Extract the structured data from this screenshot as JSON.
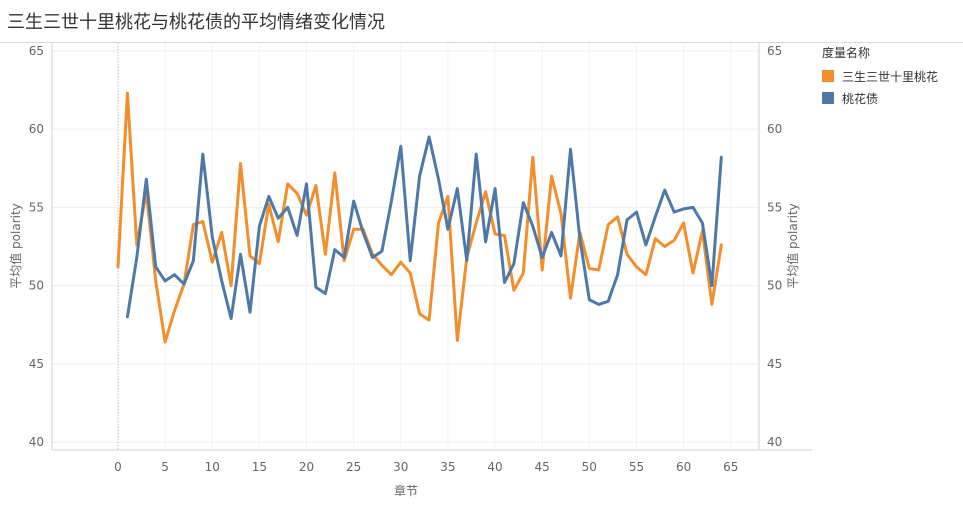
{
  "title": "三生三世十里桃花与桃花债的平均情绪变化情况",
  "legend": {
    "title": "度量名称",
    "items": [
      {
        "label": "三生三世十里桃花",
        "color": "#f28e2b"
      },
      {
        "label": "桃花债",
        "color": "#4e79a7"
      }
    ]
  },
  "chart_data": {
    "type": "line",
    "xlabel": "章节",
    "ylabel_left": "平均值 polarity",
    "ylabel_right": "平均值 polarity",
    "xlim": [
      -7,
      68
    ],
    "ylim": [
      39.5,
      65.5
    ],
    "xticks": [
      0,
      5,
      10,
      15,
      20,
      25,
      30,
      35,
      40,
      45,
      50,
      55,
      60,
      65
    ],
    "yticks": [
      40,
      45,
      50,
      55,
      60,
      65
    ],
    "grid": true,
    "legend_position": "right",
    "series": [
      {
        "name": "三生三世十里桃花",
        "color": "#f28e2b",
        "x": [
          0,
          1,
          2,
          3,
          4,
          5,
          6,
          7,
          8,
          9,
          10,
          11,
          12,
          13,
          14,
          15,
          16,
          17,
          18,
          19,
          20,
          21,
          22,
          23,
          24,
          25,
          26,
          27,
          28,
          29,
          30,
          31,
          32,
          33,
          34,
          35,
          36,
          37,
          38,
          39,
          40,
          41,
          42,
          43,
          44,
          45,
          46,
          47,
          48,
          49,
          50,
          51,
          52,
          53,
          54,
          55,
          56,
          57,
          58,
          59,
          60,
          61,
          62,
          63,
          64
        ],
        "y": [
          51.2,
          62.3,
          52.6,
          56.0,
          50.3,
          46.4,
          48.4,
          50.1,
          53.9,
          54.1,
          51.5,
          53.4,
          50.0,
          57.8,
          51.9,
          51.4,
          55.2,
          52.8,
          56.5,
          55.9,
          54.5,
          56.4,
          52.0,
          57.2,
          51.6,
          53.6,
          53.6,
          52.0,
          51.3,
          50.7,
          51.5,
          50.8,
          48.2,
          47.8,
          54.0,
          55.7,
          46.5,
          51.8,
          54.0,
          56.0,
          53.3,
          53.2,
          49.7,
          50.8,
          58.2,
          51.0,
          57.0,
          54.6,
          49.2,
          53.4,
          51.1,
          51.0,
          53.9,
          54.4,
          52.0,
          51.2,
          50.7,
          53.0,
          52.5,
          52.9,
          54.0,
          50.8,
          53.5,
          48.8,
          52.6
        ]
      },
      {
        "name": "桃花债",
        "color": "#4e79a7",
        "x": [
          1,
          2,
          3,
          4,
          5,
          6,
          7,
          8,
          9,
          10,
          11,
          12,
          13,
          14,
          15,
          16,
          17,
          18,
          19,
          20,
          21,
          22,
          23,
          24,
          25,
          26,
          27,
          28,
          29,
          30,
          31,
          32,
          33,
          34,
          35,
          36,
          37,
          38,
          39,
          40,
          41,
          42,
          43,
          44,
          45,
          46,
          47,
          48,
          49,
          50,
          51,
          52,
          53,
          54,
          55,
          56,
          57,
          58,
          59,
          60,
          61,
          62,
          63,
          64
        ],
        "y": [
          48.0,
          51.8,
          56.8,
          51.2,
          50.3,
          50.7,
          50.1,
          51.6,
          58.4,
          53.1,
          50.3,
          47.9,
          52.0,
          48.3,
          53.8,
          55.7,
          54.3,
          55.0,
          53.2,
          56.5,
          49.9,
          49.5,
          52.3,
          51.8,
          55.4,
          53.4,
          51.8,
          52.2,
          55.4,
          58.9,
          51.6,
          57.0,
          59.5,
          56.8,
          53.6,
          56.2,
          51.6,
          58.4,
          52.8,
          56.2,
          50.2,
          51.4,
          55.3,
          53.8,
          51.8,
          53.4,
          51.9,
          58.7,
          53.0,
          49.1,
          48.8,
          49.0,
          50.7,
          54.2,
          54.7,
          52.6,
          54.4,
          56.1,
          54.7,
          54.9,
          55.0,
          54.0,
          50.0,
          58.2
        ]
      }
    ]
  }
}
